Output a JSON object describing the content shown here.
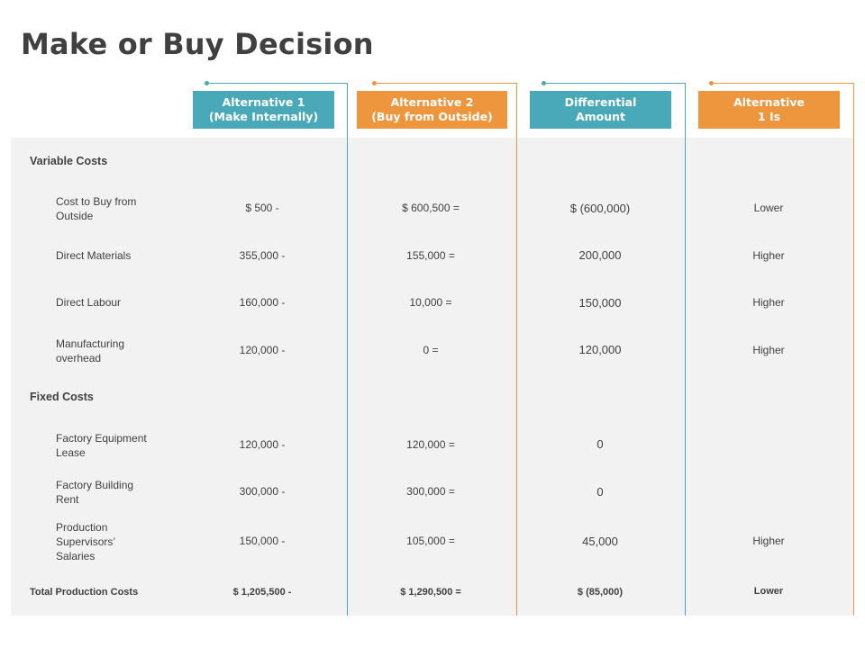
{
  "title": "Make or Buy Decision",
  "colors": {
    "teal": "#4aa9b8",
    "orange": "#ed963d",
    "panel": "#f2f2f2",
    "text": "#404040"
  },
  "headers": [
    "Alternative 1\n(Make Internally)",
    "Alternative 2\n(Buy from Outside)",
    "Differential\nAmount",
    "Alternative\n1 Is"
  ],
  "sections": {
    "variable": "Variable Costs",
    "fixed": "Fixed Costs"
  },
  "rows": [
    {
      "label": "Cost to Buy from\nOutside",
      "alt1": "$ 500  -",
      "alt2": "$ 600,500  =",
      "diff": "$ (600,000)",
      "result": "Lower"
    },
    {
      "label": "Direct Materials",
      "alt1": "355,000  -",
      "alt2": "155,000  =",
      "diff": "200,000",
      "result": "Higher"
    },
    {
      "label": "Direct Labour",
      "alt1": "160,000  -",
      "alt2": "10,000  =",
      "diff": "150,000",
      "result": "Higher"
    },
    {
      "label": "Manufacturing\noverhead",
      "alt1": "120,000  -",
      "alt2": "0  =",
      "diff": "120,000",
      "result": "Higher"
    },
    {
      "label": "Factory Equipment\nLease",
      "alt1": "120,000  -",
      "alt2": "120,000  =",
      "diff": "0",
      "result": ""
    },
    {
      "label": "Factory Building\nRent",
      "alt1": "300,000  -",
      "alt2": "300,000  =",
      "diff": "0",
      "result": ""
    },
    {
      "label": "Production\nSupervisors’\nSalaries",
      "alt1": "150,000  -",
      "alt2": "105,000  =",
      "diff": "45,000",
      "result": "Higher"
    }
  ],
  "total": {
    "label": "Total Production Costs",
    "alt1": "$ 1,205,500  -",
    "alt2": "$ 1,290,500  =",
    "diff": "$ (85,000)",
    "result": "Lower"
  }
}
